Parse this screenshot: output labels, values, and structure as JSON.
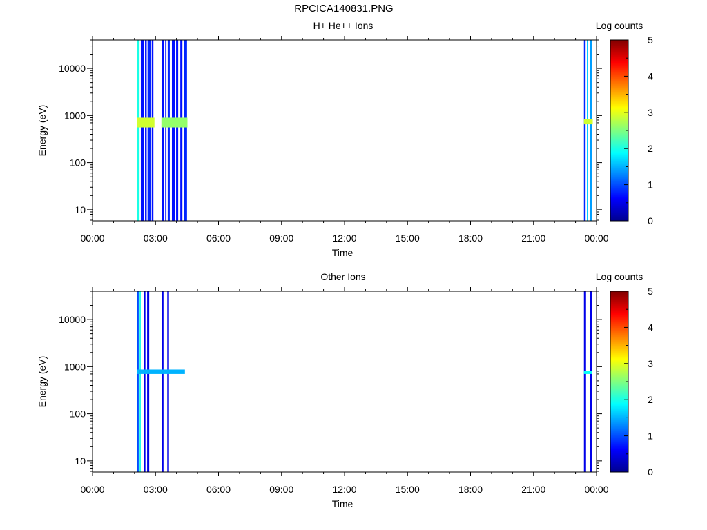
{
  "figure_title": "RPCICA140831.PNG",
  "colors": {
    "colormap": [
      "#00008f",
      "#0000ff",
      "#00ffff",
      "#ffff00",
      "#ff0000",
      "#800000"
    ],
    "frame": "#000000",
    "background": "#ffffff"
  },
  "chart_data": [
    {
      "type": "heatmap",
      "title": "H+ He++ Ions",
      "xlabel": "Time",
      "ylabel": "Energy (eV)",
      "yscale": "log",
      "xlim": [
        0,
        24
      ],
      "ylim": [
        5.8,
        40000
      ],
      "x_ticks": [
        0,
        3,
        6,
        9,
        12,
        15,
        18,
        21,
        24
      ],
      "x_tick_labels": [
        "00:00",
        "03:00",
        "06:00",
        "09:00",
        "12:00",
        "15:00",
        "18:00",
        "21:00",
        "00:00"
      ],
      "y_ticks": [
        10,
        100,
        1000,
        10000
      ],
      "y_tick_labels": [
        "10",
        "100",
        "1000",
        "10000"
      ],
      "colorbar": {
        "label": "Log counts",
        "range": [
          0,
          5
        ],
        "ticks": [
          0,
          1,
          2,
          3,
          4,
          5
        ],
        "tick_labels": [
          "0",
          "1",
          "2",
          "3",
          "4",
          "5"
        ]
      },
      "bands": [
        {
          "x": [
            2.12,
            2.24
          ],
          "level": 2.0
        },
        {
          "x": [
            2.3,
            2.45
          ],
          "level": 0.7
        },
        {
          "x": [
            2.5,
            2.58
          ],
          "level": 0.7
        },
        {
          "x": [
            2.62,
            2.78
          ],
          "level": 0.8
        },
        {
          "x": [
            2.82,
            2.9
          ],
          "level": 0.7
        },
        {
          "x": [
            3.3,
            3.4
          ],
          "level": 0.7
        },
        {
          "x": [
            3.46,
            3.52
          ],
          "level": 0.7
        },
        {
          "x": [
            3.58,
            3.68
          ],
          "level": 0.8
        },
        {
          "x": [
            3.78,
            3.92
          ],
          "level": 0.7
        },
        {
          "x": [
            3.98,
            4.08
          ],
          "level": 0.7
        },
        {
          "x": [
            4.18,
            4.28
          ],
          "level": 0.7
        },
        {
          "x": [
            4.36,
            4.5
          ],
          "level": 0.8
        },
        {
          "x": [
            23.4,
            23.48
          ],
          "level": 0.8
        },
        {
          "x": [
            23.54,
            23.6
          ],
          "level": 1.6
        },
        {
          "x": [
            23.7,
            23.8
          ],
          "level": 1.4
        }
      ],
      "peaks": [
        {
          "x": [
            2.12,
            2.95
          ],
          "e": [
            560,
            900
          ],
          "level": 2.9
        },
        {
          "x": [
            3.28,
            4.52
          ],
          "e": [
            560,
            900
          ],
          "level": 2.6
        },
        {
          "x": [
            23.4,
            23.82
          ],
          "e": [
            650,
            850
          ],
          "level": 2.9
        }
      ]
    },
    {
      "type": "heatmap",
      "title": "Other Ions",
      "xlabel": "Time",
      "ylabel": "Energy (eV)",
      "yscale": "log",
      "xlim": [
        0,
        24
      ],
      "ylim": [
        5.8,
        40000
      ],
      "x_ticks": [
        0,
        3,
        6,
        9,
        12,
        15,
        18,
        21,
        24
      ],
      "x_tick_labels": [
        "00:00",
        "03:00",
        "06:00",
        "09:00",
        "12:00",
        "15:00",
        "18:00",
        "21:00",
        "00:00"
      ],
      "y_ticks": [
        10,
        100,
        1000,
        10000
      ],
      "y_tick_labels": [
        "10",
        "100",
        "1000",
        "10000"
      ],
      "colorbar": {
        "label": "Log counts",
        "range": [
          0,
          5
        ],
        "ticks": [
          0,
          1,
          2,
          3,
          4,
          5
        ],
        "tick_labels": [
          "0",
          "1",
          "2",
          "3",
          "4",
          "5"
        ]
      },
      "bands": [
        {
          "x": [
            2.12,
            2.2
          ],
          "level": 1.0
        },
        {
          "x": [
            2.24,
            2.3
          ],
          "level": 2.0
        },
        {
          "x": [
            2.44,
            2.52
          ],
          "level": 0.5
        },
        {
          "x": [
            2.6,
            2.7
          ],
          "level": 0.5
        },
        {
          "x": [
            3.3,
            3.38
          ],
          "level": 0.5
        },
        {
          "x": [
            3.56,
            3.64
          ],
          "level": 0.5
        },
        {
          "x": [
            23.4,
            23.5
          ],
          "level": 0.5
        },
        {
          "x": [
            23.7,
            23.8
          ],
          "level": 0.5
        }
      ],
      "peaks": [
        {
          "x": [
            2.12,
            4.4
          ],
          "e": [
            700,
            870
          ],
          "level": 1.5
        },
        {
          "x": [
            23.4,
            23.8
          ],
          "e": [
            700,
            820
          ],
          "level": 1.9
        }
      ]
    }
  ]
}
